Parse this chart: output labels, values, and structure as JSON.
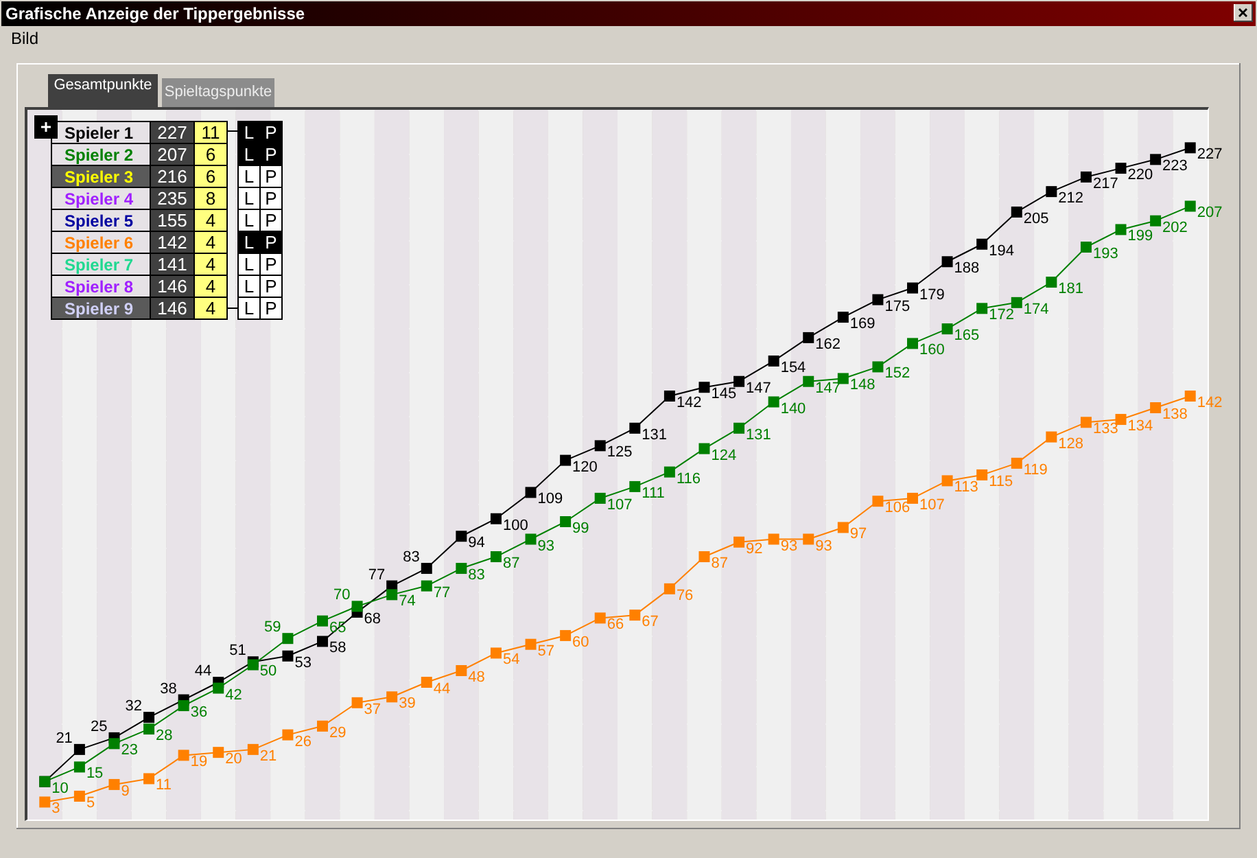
{
  "chart_data": [
    {
      "type": "line",
      "title": "Grafische Anzeige der Tippergebnisse",
      "annotations": [
        "Bild",
        "Gesamtpunkte",
        "Spieltagspunkte"
      ],
      "categories": [
        null,
        null,
        null,
        null,
        null,
        null,
        null,
        null,
        null,
        null,
        null,
        null,
        null,
        null,
        null,
        null,
        null,
        null,
        null,
        null,
        null,
        null,
        null,
        null,
        null,
        null,
        null,
        null,
        null,
        null,
        null,
        null,
        null,
        null
      ],
      "series": [
        {
          "color": "#000000",
          "values": [
            10,
            21,
            25,
            32,
            38,
            44,
            51,
            53,
            58,
            68,
            77,
            83,
            94,
            100,
            109,
            120,
            125,
            131,
            142,
            145,
            147,
            154,
            162,
            169,
            175,
            179,
            188,
            194,
            205,
            212,
            217,
            220,
            223,
            227
          ],
          "value_labels": [
            null,
            "21",
            "25",
            "32",
            "38",
            "44",
            "51",
            "53",
            "58",
            "68",
            "77",
            "83",
            "94",
            "100",
            "109",
            "120",
            "125",
            "131",
            "142",
            "145",
            "147",
            "154",
            "162",
            "169",
            "175",
            "179",
            "188",
            "194",
            "205",
            "212",
            "217",
            "220",
            "223",
            "227"
          ]
        },
        {
          "color": "#008000",
          "values": [
            10,
            15,
            23,
            28,
            36,
            42,
            50,
            59,
            65,
            70,
            74,
            77,
            83,
            87,
            93,
            99,
            107,
            111,
            116,
            124,
            131,
            140,
            147,
            148,
            152,
            160,
            165,
            172,
            174,
            181,
            193,
            199,
            202,
            207
          ]
        },
        {
          "color": "#ff8000",
          "values": [
            3,
            5,
            9,
            11,
            19,
            20,
            21,
            26,
            29,
            37,
            39,
            44,
            48,
            54,
            57,
            60,
            66,
            67,
            76,
            87,
            92,
            93,
            93,
            97,
            106,
            107,
            113,
            115,
            119,
            128,
            133,
            134,
            138,
            142
          ]
        }
      ],
      "ylim": [
        -3,
        240
      ],
      "yticks": [
        {
          "value": 0,
          "label": null
        },
        {
          "value": 15,
          "label": null
        },
        {
          "value": 30,
          "label": null
        },
        {
          "value": 45,
          "label": null
        },
        {
          "value": 60,
          "label": null
        },
        {
          "value": 75,
          "label": null
        },
        {
          "value": 90,
          "label": null
        },
        {
          "value": 105,
          "label": null
        },
        {
          "value": 120,
          "label": null
        },
        {
          "value": 135,
          "label": null
        },
        {
          "value": 150,
          "label": null
        },
        {
          "value": 165,
          "label": null
        },
        {
          "value": 180,
          "label": null
        },
        {
          "value": 195,
          "label": null
        },
        {
          "value": 210,
          "label": null
        },
        {
          "value": 225,
          "label": null
        },
        {
          "value": 240,
          "label": null
        }
      ],
      "grid": "y",
      "tick_labels": false,
      "marker": "square",
      "line_style": "solid",
      "data_labels": true
    },
    {
      "type": "other",
      "categories": [
        "Spieler 1",
        "Spieler 2",
        "Spieler 3",
        "Spieler 4",
        "Spieler 5",
        "Spieler 6",
        "Spieler 7",
        "Spieler 8",
        "Spieler 9"
      ],
      "colors": [
        "#000000",
        "#008000",
        "#ffff00",
        "#a020ff",
        "#0000a0",
        "#ff8000",
        "#20d890",
        "#a020ff",
        "#d0d0f8"
      ],
      "series": [
        {
          "color": "#404040",
          "values": [
            227,
            207,
            216,
            235,
            155,
            142,
            141,
            146,
            146
          ]
        },
        {
          "color": "#ffff80",
          "values": [
            11,
            6,
            6,
            8,
            4,
            4,
            4,
            4,
            4
          ]
        }
      ],
      "data_labels": true,
      "annotations": [
        "L",
        "P"
      ]
    }
  ]
}
